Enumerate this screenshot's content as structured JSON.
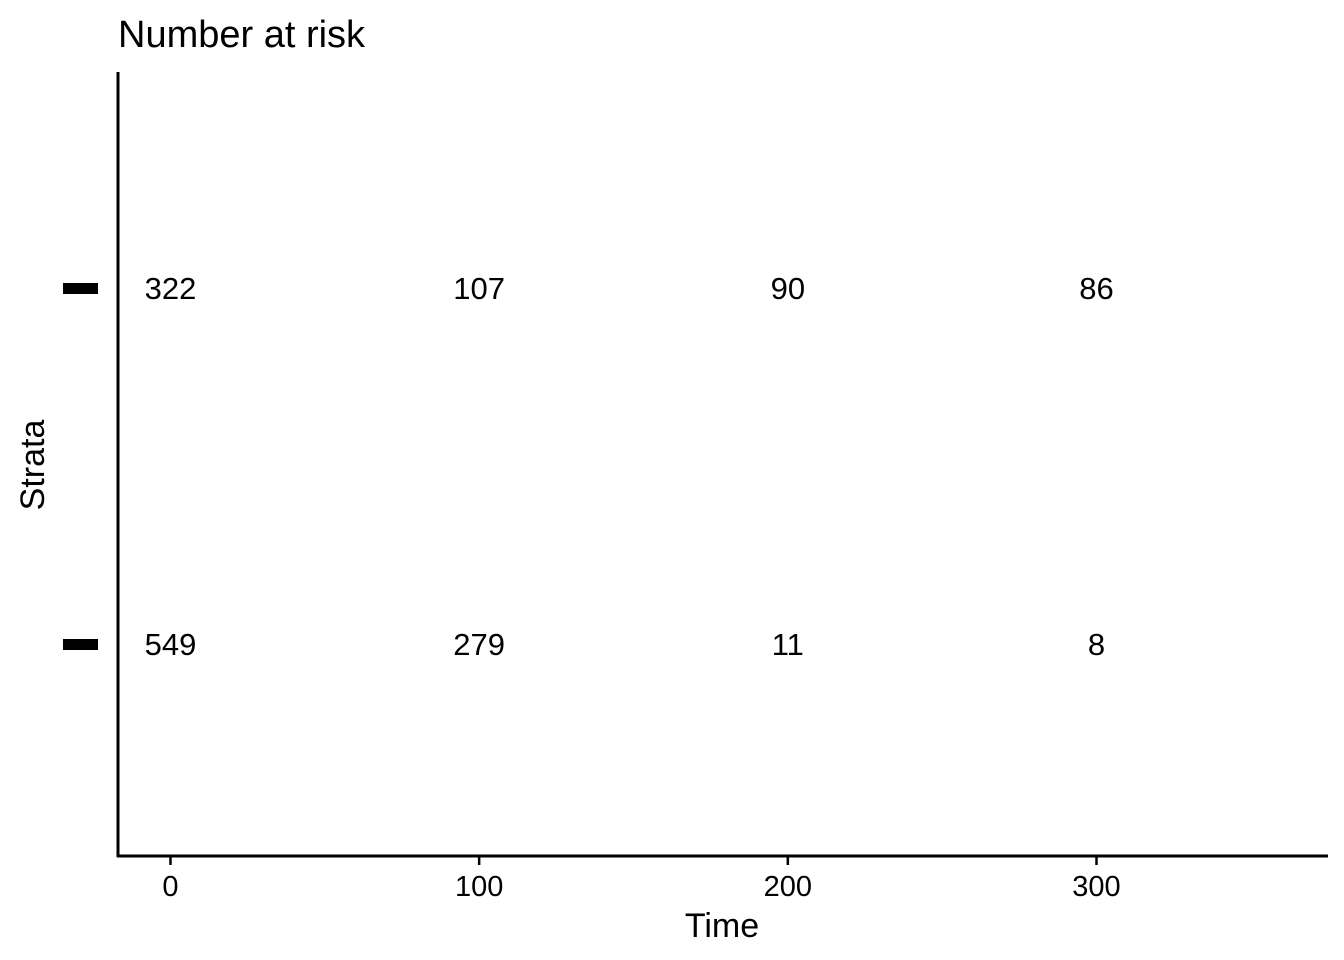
{
  "chart_data": {
    "type": "table",
    "title": "Number at risk",
    "xlabel": "Time",
    "ylabel": "Strata",
    "x": [
      0,
      100,
      200,
      300
    ],
    "xlim": [
      -17,
      375
    ],
    "x_ticks": [
      "0",
      "100",
      "200",
      "300"
    ],
    "series": [
      {
        "values": [
          322,
          107,
          90,
          86
        ],
        "color": "#000000"
      },
      {
        "values": [
          549,
          279,
          11,
          8
        ],
        "color": "#000000"
      }
    ],
    "grid": false,
    "legend": "none"
  }
}
